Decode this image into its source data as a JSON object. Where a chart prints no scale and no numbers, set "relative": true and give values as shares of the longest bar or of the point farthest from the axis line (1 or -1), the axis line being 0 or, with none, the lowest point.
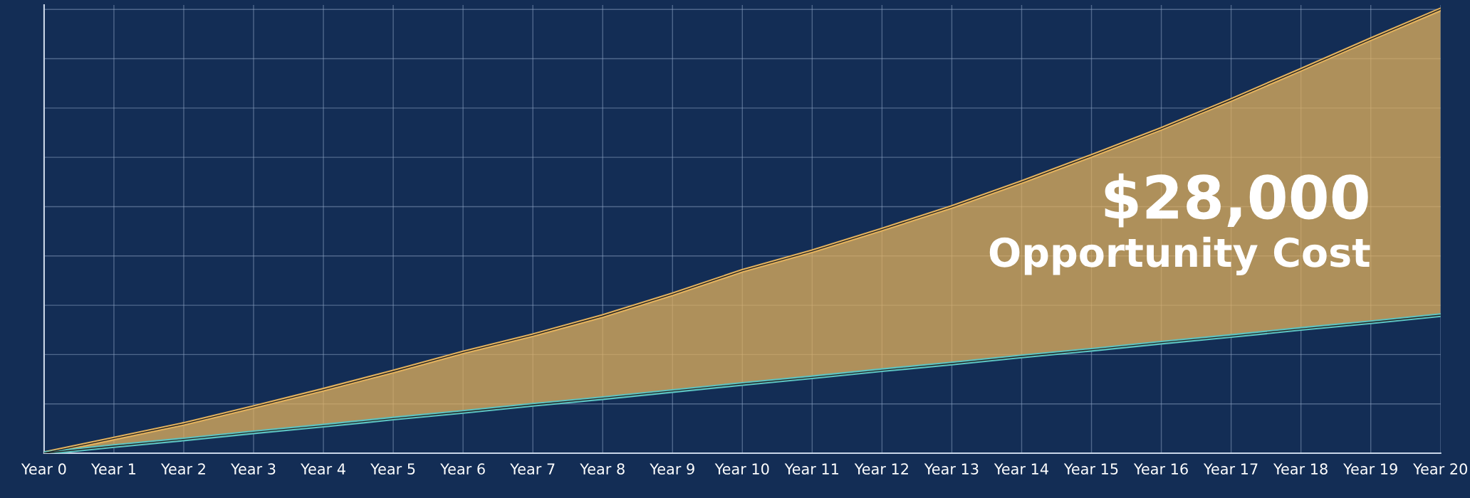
{
  "chart_data": {
    "type": "area",
    "relative": true,
    "grid": true,
    "categories": [
      "Year 0",
      "Year 1",
      "Year 2",
      "Year 3",
      "Year 4",
      "Year 5",
      "Year 6",
      "Year 7",
      "Year 8",
      "Year 9",
      "Year 10",
      "Year 11",
      "Year 12",
      "Year 13",
      "Year 14",
      "Year 15",
      "Year 16",
      "Year 17",
      "Year 18",
      "Year 19",
      "Year 20"
    ],
    "series": [
      {
        "color": "#e3b25e",
        "values": [
          0,
          0.033,
          0.066,
          0.104,
          0.143,
          0.184,
          0.227,
          0.266,
          0.309,
          0.358,
          0.411,
          0.455,
          0.504,
          0.555,
          0.611,
          0.67,
          0.731,
          0.796,
          0.864,
          0.933,
          1
        ]
      },
      {
        "type": "line",
        "color": "#5cc3c2",
        "values": [
          0,
          0.016,
          0.031,
          0.047,
          0.062,
          0.078,
          0.093,
          0.109,
          0.124,
          0.14,
          0.156,
          0.171,
          0.187,
          0.202,
          0.218,
          0.233,
          0.249,
          0.264,
          0.28,
          0.295,
          0.311
        ]
      }
    ],
    "annotations": [
      "$28,000",
      "Opportunity Cost"
    ]
  }
}
